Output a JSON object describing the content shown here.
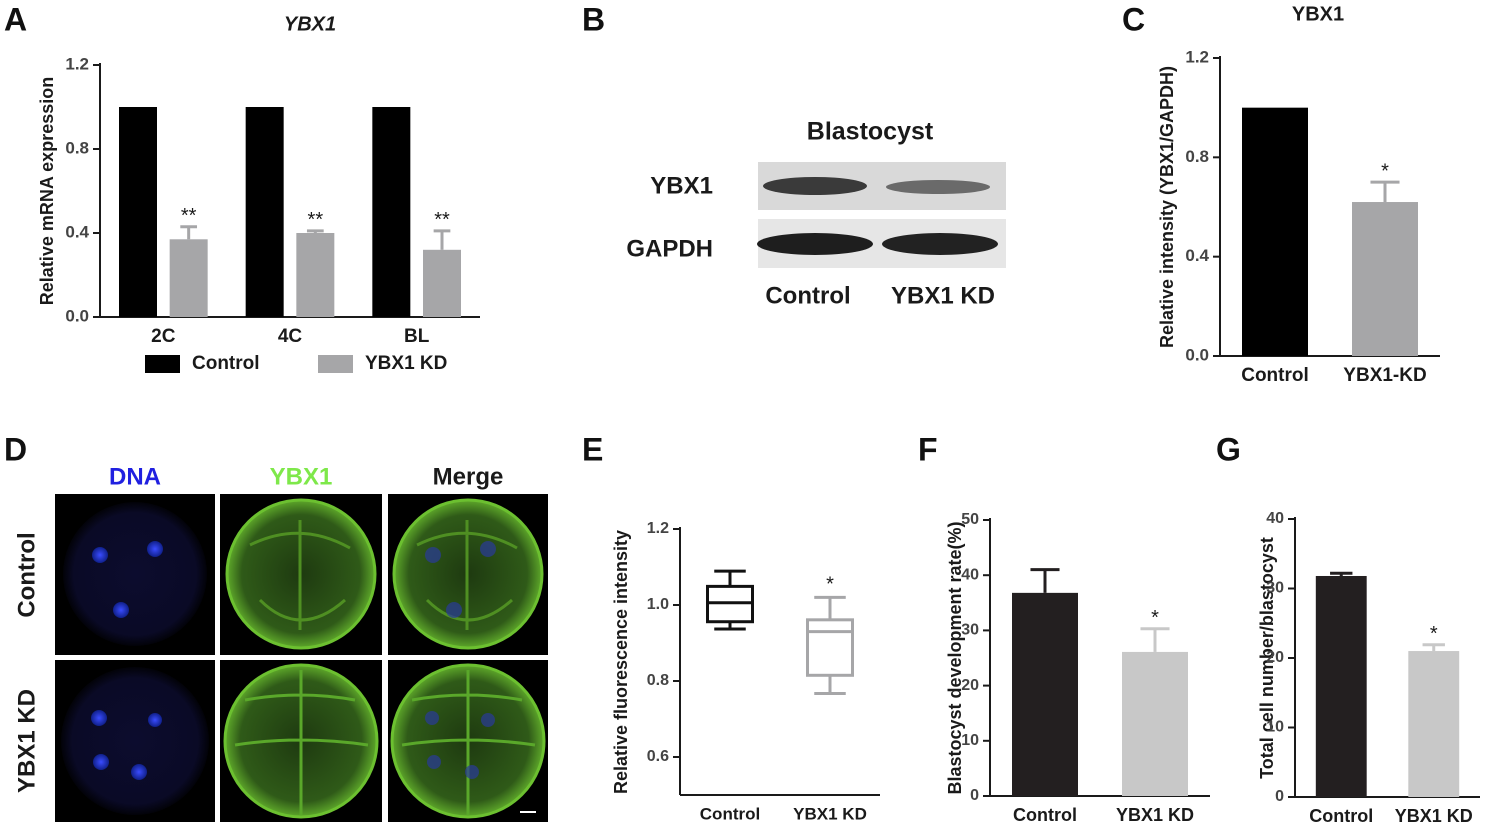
{
  "chart_data": [
    {
      "panel": "A",
      "type": "bar",
      "title": "YBX1",
      "ylabel": "Relative mRNA expression",
      "categories": [
        "2C",
        "4C",
        "BL"
      ],
      "series": [
        {
          "name": "Control",
          "color": "#000000",
          "values": [
            1.0,
            1.0,
            1.0
          ]
        },
        {
          "name": "YBX1 KD",
          "color": "#a6a6a8",
          "values": [
            0.37,
            0.4,
            0.32
          ],
          "errors": [
            0.06,
            0.01,
            0.09
          ],
          "annotations": [
            "**",
            "**",
            "**"
          ]
        }
      ],
      "ylim": [
        0,
        1.2
      ],
      "yticks": [
        {
          "value": 0,
          "label": "0.0"
        },
        0.4,
        0.8,
        1.2
      ],
      "legend": "bottom"
    },
    {
      "panel": "C",
      "type": "bar",
      "title": "YBX1",
      "ylabel": "Relative intensity (YBX1/GAPDH)",
      "categories": [
        "Control",
        "YBX1-KD"
      ],
      "values": [
        1.0,
        0.62
      ],
      "errors": [
        null,
        0.08
      ],
      "annotations": [
        null,
        "*"
      ],
      "colors": [
        "#000000",
        "#a6a6a8"
      ],
      "ylim": [
        0,
        1.2
      ],
      "yticks": [
        {
          "value": 0,
          "label": "0.0"
        },
        0.4,
        0.8,
        1.2
      ]
    },
    {
      "panel": "E",
      "type": "box",
      "ylabel": "Relative fluorescence intensity",
      "categories": [
        "Control",
        "YBX1 KD"
      ],
      "boxes": [
        {
          "whislo": 0.937,
          "q1": 0.956,
          "med": 1.006,
          "q3": 1.049,
          "whishi": 1.089
        },
        {
          "whislo": 0.767,
          "q1": 0.815,
          "med": 0.93,
          "q3": 0.961,
          "whishi": 1.02
        }
      ],
      "annotations": [
        null,
        "*"
      ],
      "colors": [
        "#111111",
        "#a6a6a8"
      ],
      "ylim": [
        0.5,
        1.2
      ],
      "yticks": [
        0.6,
        0.8,
        {
          "value": 1,
          "label": "1.0"
        },
        1.2
      ]
    },
    {
      "panel": "F",
      "type": "bar",
      "ylabel": "Blastocyst development rate(%)",
      "categories": [
        "Control",
        "YBX1 KD"
      ],
      "values": [
        36.8,
        26.1
      ],
      "errors": [
        4.2,
        4.2
      ],
      "annotations": [
        null,
        "*"
      ],
      "colors": [
        "#231f20",
        "#c8c8c8"
      ],
      "ylim": [
        0,
        50
      ],
      "yticks": [
        0,
        10,
        20,
        30,
        40,
        50
      ]
    },
    {
      "panel": "G",
      "type": "bar",
      "ylabel": "Total cell number/blastocyst",
      "categories": [
        "Control",
        "YBX1 KD"
      ],
      "values": [
        31.8,
        21.0
      ],
      "errors": [
        0.4,
        0.9
      ],
      "annotations": [
        null,
        "*"
      ],
      "colors": [
        "#231f20",
        "#c8c8c8"
      ],
      "ylim": [
        0,
        40
      ],
      "yticks": [
        0,
        10,
        20,
        30,
        40
      ]
    }
  ],
  "blot": {
    "panel": "B",
    "title": "Blastocyst",
    "rows": [
      "YBX1",
      "GAPDH"
    ],
    "columns": [
      "Control",
      "YBX1 KD"
    ]
  },
  "microscopy": {
    "panel": "D",
    "columns": [
      "DNA",
      "YBX1",
      "Merge"
    ],
    "rows": [
      "Control",
      "YBX1 KD"
    ]
  }
}
